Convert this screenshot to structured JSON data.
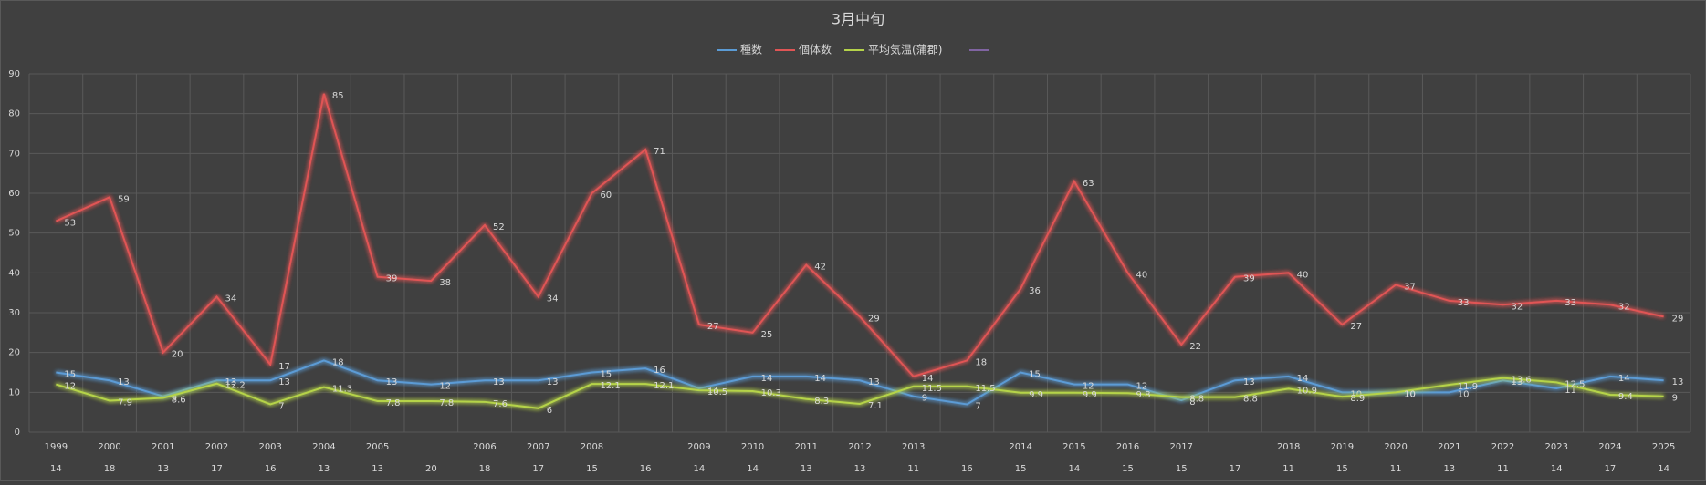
{
  "chart_data": {
    "type": "line",
    "title": "3月中旬",
    "categories": [
      1999,
      2000,
      2001,
      2002,
      2003,
      2004,
      2005,
      null,
      2006,
      2007,
      2008,
      null,
      2009,
      2010,
      2011,
      2012,
      2013,
      null,
      2014,
      2015,
      2016,
      2017,
      null,
      2018,
      2019,
      2020,
      2021,
      2022,
      2023,
      2024,
      2025
    ],
    "sub_categories": [
      14,
      18,
      13,
      17,
      16,
      13,
      13,
      20,
      18,
      17,
      15,
      16,
      14,
      14,
      13,
      13,
      11,
      16,
      15,
      14,
      15,
      15,
      17,
      11,
      15,
      11,
      13,
      11,
      14,
      17,
      14
    ],
    "series": [
      {
        "name": "種数",
        "color": "#5b9bd5",
        "values": [
          15,
          13,
          9,
          13,
          13,
          18,
          13,
          12,
          13,
          13,
          15,
          16,
          11,
          14,
          14,
          13,
          9,
          7,
          15,
          12,
          12,
          8,
          13,
          14,
          10,
          10,
          10,
          13,
          11,
          14,
          13
        ]
      },
      {
        "name": "個体数",
        "color": "#e05555",
        "values": [
          53,
          59,
          20,
          34,
          17,
          85,
          39,
          38,
          52,
          34,
          60,
          71,
          27,
          25,
          42,
          29,
          14,
          18,
          36,
          63,
          40,
          22,
          39,
          40,
          27,
          37,
          33,
          32,
          33,
          32,
          29
        ]
      },
      {
        "name": "平均気温(蒲郡)",
        "color": "#b5d34a",
        "values": [
          12,
          7.9,
          8.6,
          12.2,
          7,
          11.3,
          7.8,
          7.8,
          7.6,
          6,
          12.1,
          12.1,
          10.5,
          10.3,
          8.3,
          7.1,
          11.5,
          11.5,
          9.9,
          9.9,
          9.8,
          8.8,
          8.8,
          10.9,
          8.9,
          10,
          11.9,
          13.6,
          12.5,
          9.4,
          9
        ]
      }
    ],
    "ylim": [
      0,
      90
    ],
    "yticks": [
      0,
      10,
      20,
      30,
      40,
      50,
      60,
      70,
      80,
      90
    ],
    "grid": true
  }
}
